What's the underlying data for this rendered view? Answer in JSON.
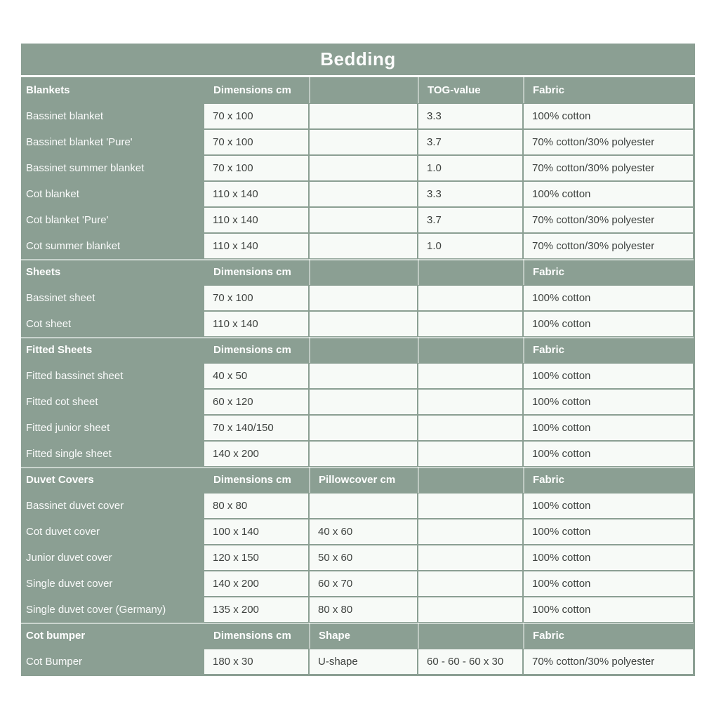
{
  "title": "Bedding",
  "colors": {
    "table_green": "#8b9f93",
    "cell_background": "#f7faf7",
    "cell_text": "#3e423f",
    "header_text": "#ffffff"
  },
  "table": {
    "sections": [
      {
        "header": {
          "name": "Blankets",
          "cols": [
            "Dimensions cm",
            "",
            "TOG-value",
            "Fabric"
          ]
        },
        "rows": [
          {
            "name": "Bassinet blanket",
            "cells": [
              "70 x 100",
              "",
              "3.3",
              "100% cotton"
            ]
          },
          {
            "name": "Bassinet blanket 'Pure'",
            "cells": [
              "70 x 100",
              "",
              "3.7",
              "70% cotton/30% polyester"
            ]
          },
          {
            "name": "Bassinet summer blanket",
            "cells": [
              "70 x 100",
              "",
              "1.0",
              "70% cotton/30% polyester"
            ]
          },
          {
            "name": "Cot blanket",
            "cells": [
              "110 x 140",
              "",
              "3.3",
              "100% cotton"
            ]
          },
          {
            "name": "Cot blanket 'Pure'",
            "cells": [
              "110 x 140",
              "",
              "3.7",
              "70% cotton/30% polyester"
            ]
          },
          {
            "name": "Cot summer blanket",
            "cells": [
              "110 x 140",
              "",
              "1.0",
              "70% cotton/30% polyester"
            ]
          }
        ]
      },
      {
        "header": {
          "name": "Sheets",
          "cols": [
            "Dimensions cm",
            "",
            "",
            "Fabric"
          ]
        },
        "rows": [
          {
            "name": "Bassinet sheet",
            "cells": [
              "70 x 100",
              "",
              "",
              "100% cotton"
            ]
          },
          {
            "name": "Cot sheet",
            "cells": [
              "110 x 140",
              "",
              "",
              "100% cotton"
            ]
          }
        ]
      },
      {
        "header": {
          "name": "Fitted Sheets",
          "cols": [
            "Dimensions cm",
            "",
            "",
            "Fabric"
          ]
        },
        "rows": [
          {
            "name": "Fitted bassinet sheet",
            "cells": [
              "40 x 50",
              "",
              "",
              "100% cotton"
            ]
          },
          {
            "name": "Fitted cot sheet",
            "cells": [
              "60 x 120",
              "",
              "",
              "100% cotton"
            ]
          },
          {
            "name": "Fitted junior sheet",
            "cells": [
              "70 x 140/150",
              "",
              "",
              "100% cotton"
            ]
          },
          {
            "name": "Fitted single sheet",
            "cells": [
              "140 x 200",
              "",
              "",
              "100% cotton"
            ]
          }
        ]
      },
      {
        "header": {
          "name": "Duvet Covers",
          "cols": [
            "Dimensions cm",
            "Pillowcover cm",
            "",
            "Fabric"
          ]
        },
        "rows": [
          {
            "name": "Bassinet duvet cover",
            "cells": [
              "80 x 80",
              "",
              "",
              "100% cotton"
            ]
          },
          {
            "name": "Cot duvet cover",
            "cells": [
              "100 x 140",
              "40 x 60",
              "",
              "100% cotton"
            ]
          },
          {
            "name": "Junior duvet cover",
            "cells": [
              "120 x 150",
              "50 x 60",
              "",
              "100% cotton"
            ]
          },
          {
            "name": "Single duvet cover",
            "cells": [
              "140 x 200",
              "60 x 70",
              "",
              "100% cotton"
            ]
          },
          {
            "name": "Single duvet cover (Germany)",
            "cells": [
              "135 x 200",
              "80 x 80",
              "",
              "100% cotton"
            ]
          }
        ]
      },
      {
        "header": {
          "name": "Cot bumper",
          "cols": [
            "Dimensions cm",
            "Shape",
            "",
            "Fabric"
          ]
        },
        "rows": [
          {
            "name": "Cot Bumper",
            "cells": [
              "180 x 30",
              "U-shape",
              "60 - 60 - 60 x 30",
              "70% cotton/30% polyester"
            ]
          }
        ]
      }
    ]
  }
}
